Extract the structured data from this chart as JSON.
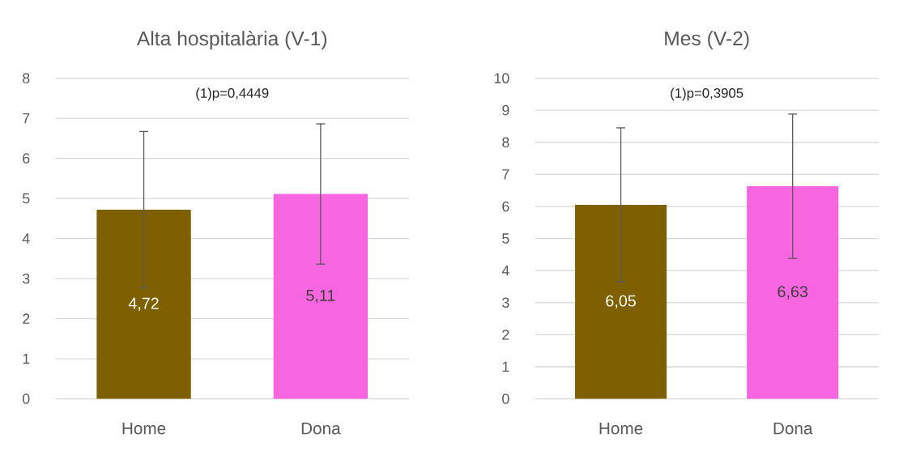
{
  "chart_data": [
    {
      "type": "bar",
      "title": "Alta hospitalària (V-1)",
      "categories": [
        "Home",
        "Dona"
      ],
      "values": [
        4.72,
        5.11
      ],
      "colors": [
        "#7f6000",
        "#f766e0"
      ],
      "errors": [
        1.95,
        1.75
      ],
      "value_labels": [
        "4,72",
        "5,11"
      ],
      "ylim": [
        0,
        8
      ],
      "yticks": [
        0,
        1,
        2,
        3,
        4,
        5,
        6,
        7,
        8
      ],
      "grid": "y",
      "annotations": [
        "(1)p=0,4449"
      ]
    },
    {
      "type": "bar",
      "title": "Mes (V-2)",
      "categories": [
        "Home",
        "Dona"
      ],
      "values": [
        6.05,
        6.63
      ],
      "colors": [
        "#7f6000",
        "#f766e0"
      ],
      "errors": [
        2.4,
        2.25
      ],
      "value_labels": [
        "6,05",
        "6,63"
      ],
      "ylim": [
        0,
        10
      ],
      "yticks": [
        0,
        1,
        2,
        3,
        4,
        5,
        6,
        7,
        8,
        9,
        10
      ],
      "grid": "y",
      "annotations": [
        "(1)p=0,3905"
      ]
    }
  ]
}
